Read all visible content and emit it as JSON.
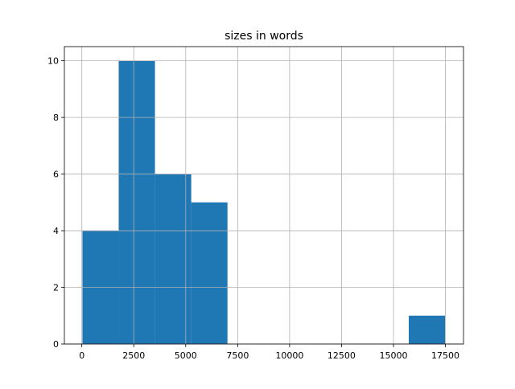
{
  "chart_data": {
    "type": "histogram",
    "title": "sizes in words",
    "xlabel": "",
    "ylabel": "",
    "bin_edges": [
      30,
      1775,
      3520,
      5265,
      7010,
      8755,
      10500,
      12245,
      13990,
      15735,
      17480
    ],
    "counts": [
      4,
      10,
      6,
      5,
      0,
      0,
      0,
      0,
      0,
      1
    ],
    "xlim": [
      -840,
      18370
    ],
    "ylim": [
      0,
      10.5
    ],
    "xticks": [
      0,
      2500,
      5000,
      7500,
      10000,
      12500,
      15000,
      17500
    ],
    "xtick_labels": [
      "0",
      "2500",
      "5000",
      "7500",
      "10000",
      "12500",
      "15000",
      "17500"
    ],
    "yticks": [
      0,
      2,
      4,
      6,
      8,
      10
    ],
    "ytick_labels": [
      "0",
      "2",
      "4",
      "6",
      "8",
      "10"
    ],
    "grid": true,
    "bar_color": "#1f77b4",
    "grid_color": "#b0b0b0"
  }
}
